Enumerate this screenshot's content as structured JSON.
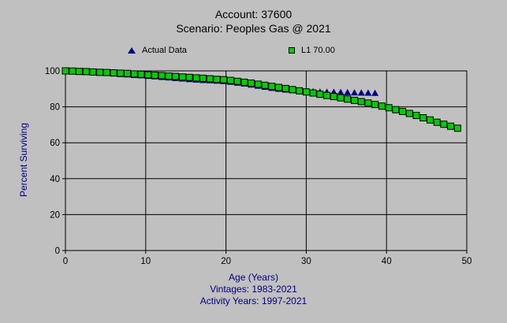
{
  "window": {
    "background": "#c0c0c0"
  },
  "title": {
    "line1": "Account: 37600",
    "line2": "Scenario: Peoples Gas @ 2021"
  },
  "legend": {
    "items": [
      {
        "label": "Actual Data",
        "marker": "triangle",
        "color": "#000080"
      },
      {
        "label": "L1 70.00",
        "marker": "square",
        "color": "#00cc00"
      }
    ]
  },
  "axes": {
    "xlabel": "Age (Years)",
    "ylabel": "Percent Surviving",
    "text_color": "#000080",
    "tick_color": "#000000"
  },
  "footer": {
    "vintages": "Vintages: 1983-2021",
    "activity": "Activity Years: 1997-2021"
  },
  "chart_data": {
    "type": "scatter",
    "title": "Account: 37600 / Scenario: Peoples Gas @ 2021",
    "xlabel": "Age (Years)",
    "ylabel": "Percent Surviving",
    "xlim": [
      0,
      50
    ],
    "ylim": [
      0,
      100
    ],
    "xticks": [
      0,
      10,
      20,
      30,
      40,
      50
    ],
    "yticks": [
      0,
      20,
      40,
      60,
      80,
      100
    ],
    "grid": true,
    "legend_position": "top",
    "series": [
      {
        "name": "Actual Data",
        "marker": "triangle",
        "color": "#000080",
        "points": [
          [
            0,
            100
          ],
          [
            0.86,
            99.8
          ],
          [
            1.71,
            99.6
          ],
          [
            2.57,
            99.4
          ],
          [
            3.43,
            99.1
          ],
          [
            4.29,
            98.9
          ],
          [
            5.14,
            98.7
          ],
          [
            6,
            98.4
          ],
          [
            6.86,
            98.1
          ],
          [
            7.71,
            97.9
          ],
          [
            8.57,
            97.6
          ],
          [
            9.43,
            97.4
          ],
          [
            10.29,
            97.1
          ],
          [
            11.14,
            96.8
          ],
          [
            12,
            96.5
          ],
          [
            12.86,
            96.2
          ],
          [
            13.71,
            95.9
          ],
          [
            14.57,
            95.6
          ],
          [
            15.43,
            95.3
          ],
          [
            16.29,
            95
          ],
          [
            17.14,
            94.8
          ],
          [
            18,
            94.6
          ],
          [
            18.86,
            94.4
          ],
          [
            19.71,
            94.2
          ],
          [
            20.57,
            93.8
          ],
          [
            21.43,
            93.3
          ],
          [
            22.29,
            92.8
          ],
          [
            23.14,
            92.2
          ],
          [
            24,
            91.6
          ],
          [
            24.86,
            91
          ],
          [
            25.71,
            90.4
          ],
          [
            26.57,
            89.9
          ],
          [
            27.43,
            89.5
          ],
          [
            28.29,
            89.1
          ],
          [
            29.14,
            88.9
          ],
          [
            30,
            88.6
          ],
          [
            30.86,
            88.5
          ],
          [
            31.71,
            88.3
          ],
          [
            32.57,
            88.2
          ],
          [
            33.43,
            88.2
          ],
          [
            34.29,
            88.1
          ],
          [
            35.14,
            88
          ],
          [
            36,
            87.9
          ],
          [
            36.86,
            87.8
          ],
          [
            37.71,
            87.7
          ],
          [
            38.57,
            87.6
          ]
        ]
      },
      {
        "name": "L1 70.00",
        "marker": "square",
        "color": "#00cc00",
        "points": [
          [
            0,
            100
          ],
          [
            0.86,
            99.9
          ],
          [
            1.71,
            99.7
          ],
          [
            2.57,
            99.6
          ],
          [
            3.43,
            99.4
          ],
          [
            4.29,
            99.2
          ],
          [
            5.14,
            99.1
          ],
          [
            6,
            98.9
          ],
          [
            6.86,
            98.7
          ],
          [
            7.71,
            98.6
          ],
          [
            8.57,
            98.3
          ],
          [
            9.43,
            98.1
          ],
          [
            10.29,
            97.8
          ],
          [
            11.14,
            97.6
          ],
          [
            12,
            97.4
          ],
          [
            12.86,
            97.1
          ],
          [
            13.71,
            96.9
          ],
          [
            14.57,
            96.6
          ],
          [
            15.43,
            96.4
          ],
          [
            16.29,
            96.1
          ],
          [
            17.14,
            95.9
          ],
          [
            18,
            95.6
          ],
          [
            18.86,
            95.3
          ],
          [
            19.71,
            95.1
          ],
          [
            20.57,
            94.7
          ],
          [
            21.43,
            94.2
          ],
          [
            22.29,
            93.7
          ],
          [
            23.14,
            93.2
          ],
          [
            24,
            92.6
          ],
          [
            24.86,
            92
          ],
          [
            25.71,
            91.4
          ],
          [
            26.57,
            90.8
          ],
          [
            27.43,
            90.2
          ],
          [
            28.29,
            89.6
          ],
          [
            29.14,
            88.9
          ],
          [
            30,
            88.3
          ],
          [
            30.86,
            87.7
          ],
          [
            31.71,
            87
          ],
          [
            32.57,
            86.3
          ],
          [
            33.43,
            85.7
          ],
          [
            34.29,
            85
          ],
          [
            35.14,
            84.3
          ],
          [
            36,
            83.6
          ],
          [
            36.86,
            82.9
          ],
          [
            37.71,
            82.1
          ],
          [
            38.57,
            81.3
          ],
          [
            39.43,
            80.4
          ],
          [
            40.29,
            79.5
          ],
          [
            41.14,
            78.4
          ],
          [
            42,
            77.4
          ],
          [
            42.86,
            76.3
          ],
          [
            43.71,
            75.2
          ],
          [
            44.57,
            73.9
          ],
          [
            45.43,
            72.7
          ],
          [
            46.29,
            71.4
          ],
          [
            47.14,
            70.3
          ],
          [
            48,
            69.2
          ],
          [
            48.86,
            68.1
          ]
        ]
      }
    ]
  }
}
